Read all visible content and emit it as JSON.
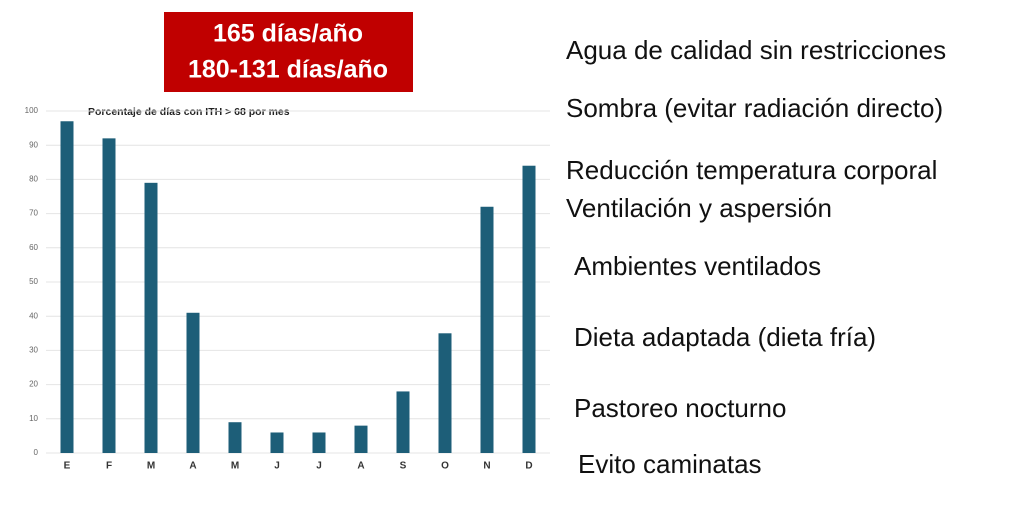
{
  "banner": [
    "165 días/año",
    "180-131 días/año"
  ],
  "measures": [
    "Agua de calidad sin restricciones",
    "Sombra (evitar radiación directo)",
    "Reducción temperatura corporal",
    "Ventilación y aspersión",
    "Ambientes ventilados",
    "Dieta adaptada (dieta fría)",
    "Pastoreo nocturno",
    "Evito caminatas"
  ],
  "chart_data": {
    "type": "bar",
    "title": "Porcentaje de días con ITH > 68 por mes",
    "categories": [
      "E",
      "F",
      "M",
      "A",
      "M",
      "J",
      "J",
      "A",
      "S",
      "O",
      "N",
      "D"
    ],
    "values": [
      97,
      92,
      79,
      41,
      9,
      6,
      6,
      8,
      18,
      35,
      72,
      84
    ],
    "color": "#1d5e78",
    "ylim": [
      0,
      100
    ],
    "yticks": [
      0,
      10,
      20,
      30,
      40,
      50,
      60,
      70,
      80,
      90,
      100
    ],
    "grid": true
  }
}
